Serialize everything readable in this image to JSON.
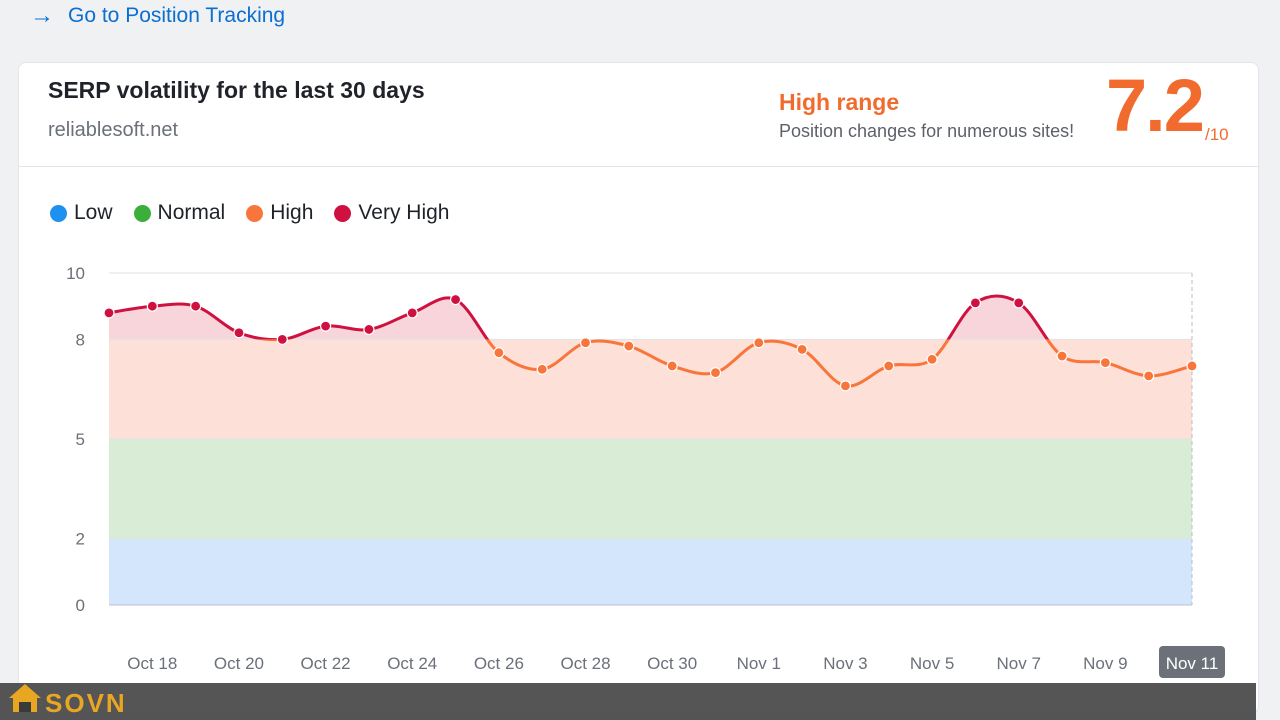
{
  "top_link": {
    "label": "Go to Position Tracking",
    "icon": "arrow-right-icon"
  },
  "header": {
    "title": "SERP volatility for the last 30 days",
    "domain": "reliablesoft.net",
    "range_label": "High range",
    "range_desc": "Position changes for numerous sites!",
    "score": "7.2",
    "score_max": "/10"
  },
  "legend": [
    {
      "label": "Low",
      "color": "#1e90f0"
    },
    {
      "label": "Normal",
      "color": "#3cae3a"
    },
    {
      "label": "High",
      "color": "#f8763b"
    },
    {
      "label": "Very High",
      "color": "#cf1140"
    }
  ],
  "watermark": {
    "text": "SOVN"
  },
  "chart_data": {
    "type": "line",
    "x": [
      "Oct 17",
      "Oct 18",
      "Oct 19",
      "Oct 20",
      "Oct 21",
      "Oct 22",
      "Oct 23",
      "Oct 24",
      "Oct 25",
      "Oct 26",
      "Oct 27",
      "Oct 28",
      "Oct 29",
      "Oct 30",
      "Oct 31",
      "Nov 1",
      "Nov 2",
      "Nov 3",
      "Nov 4",
      "Nov 5",
      "Nov 6",
      "Nov 7",
      "Nov 8",
      "Nov 9",
      "Nov 10",
      "Nov 11"
    ],
    "x_tick_labels": [
      "Oct 18",
      "Oct 20",
      "Oct 22",
      "Oct 24",
      "Oct 26",
      "Oct 28",
      "Oct 30",
      "Nov 1",
      "Nov 3",
      "Nov 5",
      "Nov 7",
      "Nov 9",
      "Nov 11"
    ],
    "highlighted_tick": "Nov 11",
    "values": [
      8.8,
      9.0,
      9.0,
      8.2,
      8.0,
      8.4,
      8.3,
      8.8,
      9.2,
      7.6,
      7.1,
      7.9,
      7.8,
      7.2,
      7.0,
      7.9,
      7.7,
      6.6,
      7.2,
      7.4,
      9.1,
      9.1,
      7.5,
      7.3,
      6.9,
      7.2
    ],
    "y_ticks": [
      0,
      2,
      5,
      8,
      10
    ],
    "ylim": [
      0,
      10
    ],
    "bands": [
      {
        "name": "Low",
        "from": 0,
        "to": 2,
        "color": "#d3e6fb"
      },
      {
        "name": "Normal",
        "from": 2,
        "to": 5,
        "color": "#d9edd6"
      },
      {
        "name": "High",
        "from": 5,
        "to": 8,
        "color": "#fde0d7"
      },
      {
        "name": "Very High",
        "from": 8,
        "to": 10,
        "color": "#f8d5da"
      }
    ],
    "line_colors": {
      "high": "#f8763b",
      "very_high": "#cf1140"
    },
    "grid": true
  }
}
